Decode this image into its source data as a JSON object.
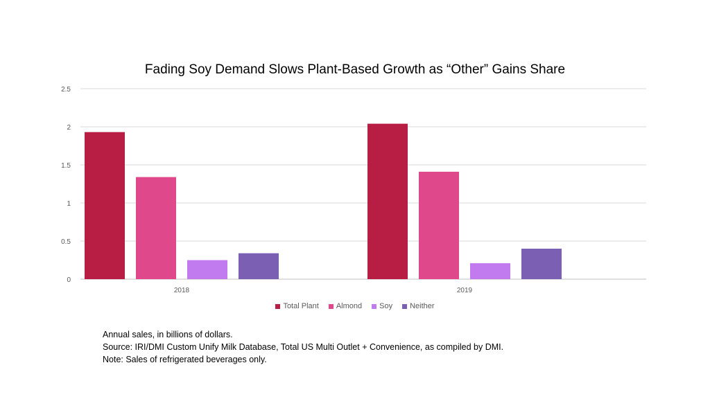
{
  "chart_data": {
    "type": "bar",
    "title": "Fading Soy Demand Slows Plant-Based Growth as “Other” Gains Share",
    "categories": [
      "2018",
      "2019"
    ],
    "series": [
      {
        "name": "Total Plant",
        "color": "#b81e44",
        "values": [
          1.93,
          2.04
        ]
      },
      {
        "name": "Almond",
        "color": "#df488a",
        "values": [
          1.34,
          1.41
        ]
      },
      {
        "name": "Soy",
        "color": "#c27bef",
        "values": [
          0.25,
          0.21
        ]
      },
      {
        "name": "Neither",
        "color": "#7b5fb3",
        "values": [
          0.34,
          0.4
        ]
      }
    ],
    "yticks": [
      "0",
      "0.5",
      "1",
      "1.5",
      "2",
      "2.5"
    ],
    "ylim": [
      0,
      2.5
    ],
    "grid": true,
    "legend_position": "bottom"
  },
  "notes": [
    "Annual sales, in billions of dollars.",
    "Source: IRI/DMI Custom Unify Milk Database, Total US Multi Outlet + Convenience, as compiled by DMI.",
    "Note: Sales of refrigerated beverages only."
  ]
}
